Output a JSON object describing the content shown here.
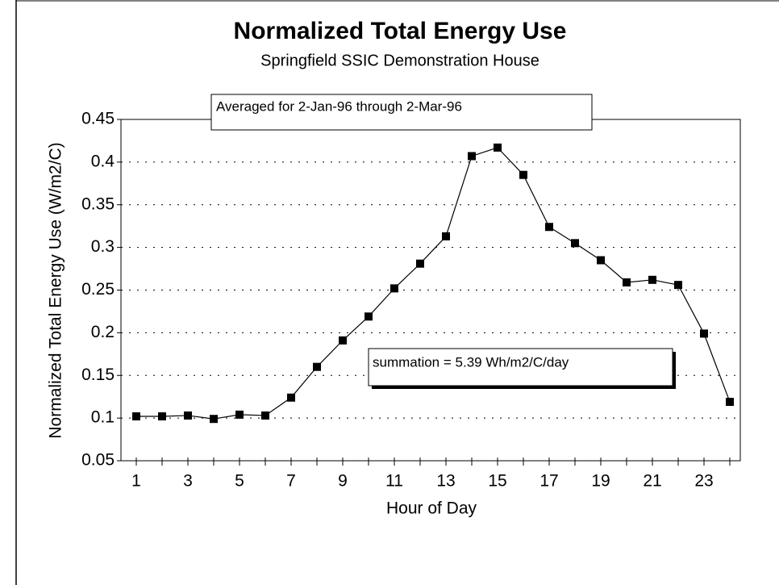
{
  "chart_data": {
    "type": "line",
    "title": "Normalized Total Energy Use",
    "subtitle": "Springfield SSIC Demonstration House",
    "x_label": "Hour of Day",
    "y_label": "Normalized Total Energy Use (W/m2/C)",
    "annotations": [
      "Averaged for 2-Jan-96 through 2-Mar-96",
      "summation = 5.39 Wh/m2/C/day"
    ],
    "categories": [
      "1",
      null,
      "3",
      null,
      "5",
      null,
      "7",
      null,
      "9",
      null,
      "11",
      null,
      "13",
      null,
      "15",
      null,
      "17",
      null,
      "19",
      null,
      "21",
      null,
      "23",
      null
    ],
    "series": [
      {
        "name": "Normalized Total Energy Use",
        "color": "#000000",
        "values": [
          0.102,
          0.102,
          0.103,
          0.099,
          0.104,
          0.103,
          0.124,
          0.16,
          0.191,
          0.219,
          0.252,
          0.281,
          0.313,
          0.407,
          0.417,
          0.385,
          0.324,
          0.305,
          0.285,
          0.259,
          0.262,
          0.256,
          0.199,
          0.119
        ]
      }
    ],
    "ylim": [
      0.05,
      0.45
    ],
    "yticks": [
      0.05,
      0.1,
      0.15,
      0.2,
      0.25,
      0.3,
      0.35,
      0.4,
      0.45
    ],
    "grid": true
  }
}
